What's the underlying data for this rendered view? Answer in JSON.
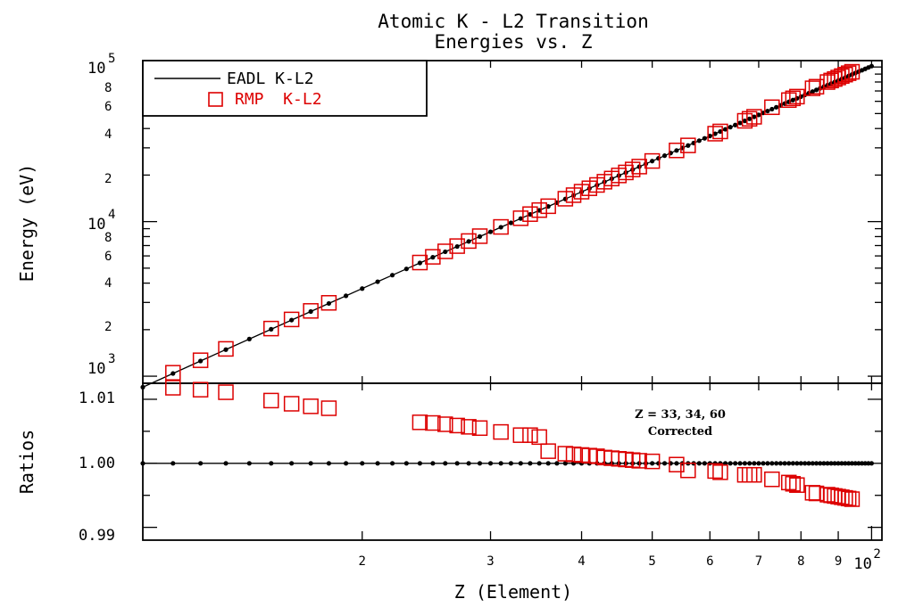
{
  "chart_data": [
    {
      "type": "line",
      "title": "Atomic K - L2 Transition",
      "subtitle": "Energies vs. Z",
      "ylabel": "Energy (eV)",
      "yscale": "log",
      "xscale": "log",
      "ylim": [
        900,
        110000
      ],
      "xlim": [
        10,
        100
      ],
      "legend_placement": "top-left",
      "series": [
        {
          "name": "EADL K-L2",
          "color": "#000000",
          "marker": "dot-line",
          "x": [
            10,
            11,
            12,
            13,
            14,
            15,
            16,
            17,
            18,
            19,
            20,
            21,
            22,
            23,
            24,
            25,
            26,
            27,
            28,
            29,
            30,
            31,
            32,
            33,
            34,
            35,
            36,
            37,
            38,
            39,
            40,
            41,
            42,
            43,
            44,
            45,
            46,
            47,
            48,
            49,
            50,
            51,
            52,
            53,
            54,
            55,
            56,
            57,
            58,
            59,
            60,
            61,
            62,
            63,
            64,
            65,
            66,
            67,
            68,
            69,
            70,
            71,
            72,
            73,
            74,
            75,
            76,
            77,
            78,
            79,
            80,
            81,
            82,
            83,
            84,
            85,
            86,
            87,
            88,
            89,
            90,
            91,
            92,
            93,
            94,
            95,
            96,
            97,
            98,
            99,
            100
          ],
          "y": [
            849,
            1041,
            1254,
            1486,
            1739,
            2013,
            2307,
            2621,
            2956,
            3312,
            3689,
            4086,
            4504,
            4942,
            5401,
            5881,
            6382,
            6903,
            7445,
            8008,
            8591,
            9196,
            9821,
            10467,
            11133,
            11821,
            12529,
            13258,
            14008,
            14779,
            15570,
            16383,
            17216,
            18070,
            18945,
            19841,
            20757,
            21695,
            22653,
            23632,
            24632,
            25653,
            26695,
            27758,
            28841,
            29945,
            31071,
            32217,
            33384,
            34572,
            35781,
            37011,
            38262,
            39534,
            40827,
            42140,
            43475,
            44831,
            46207,
            47605,
            49024,
            50463,
            51924,
            53405,
            54908,
            56431,
            57976,
            59541,
            61128,
            62735,
            64364,
            66013,
            67684,
            69375,
            71088,
            72821,
            74576,
            76351,
            78148,
            79966,
            81804,
            83664,
            85545,
            87446,
            89369,
            91313,
            93278,
            95263,
            97270,
            99298,
            101347
          ]
        },
        {
          "name": "RMP  K-L2",
          "color": "#dd0000",
          "marker": "open-square",
          "x": [
            11,
            12,
            13,
            15,
            16,
            17,
            18,
            24,
            25,
            26,
            27,
            28,
            29,
            31,
            33,
            34,
            35,
            36,
            38,
            39,
            40,
            41,
            42,
            43,
            44,
            45,
            46,
            47,
            48,
            50,
            54,
            56,
            61,
            62,
            67,
            68,
            69,
            73,
            77,
            78,
            79,
            83,
            84,
            87,
            88,
            89,
            90,
            91,
            92,
            93,
            94
          ],
          "y": [
            1053,
            1268,
            1502,
            2033,
            2329,
            2645,
            2982,
            5436,
            5918,
            6421,
            6944,
            7488,
            8052,
            9241,
            10514,
            11181,
            11869,
            12577,
            14060,
            14829,
            15617,
            16430,
            17263,
            18117,
            18993,
            19887,
            20802,
            21739,
            22695,
            24672,
            28871,
            31102,
            37055,
            38308,
            44871,
            46250,
            47650,
            54941,
            61092,
            62713,
            64358,
            72823,
            74572,
            79940,
            81781,
            83632,
            85496,
            87376,
            89270,
            91180,
            93110
          ]
        }
      ]
    },
    {
      "type": "scatter",
      "ylabel": "Ratios",
      "xlabel": "Z (Element)",
      "ylim": [
        0.988,
        1.0125
      ],
      "xlim": [
        10,
        100
      ],
      "yticks": [
        "1.01",
        "1.00",
        "0.99"
      ],
      "xticks": [
        "2",
        "3",
        "4",
        "5",
        "6",
        "7",
        "8",
        "9",
        "10²"
      ],
      "annotation": [
        "Z = 33, 34, 60",
        "Corrected"
      ],
      "series": [
        {
          "name": "EADL K-L2",
          "color": "#000000",
          "marker": "dot-line",
          "x": [
            10,
            11,
            12,
            13,
            14,
            15,
            16,
            17,
            18,
            19,
            20,
            21,
            22,
            23,
            24,
            25,
            26,
            27,
            28,
            29,
            30,
            31,
            32,
            33,
            34,
            35,
            36,
            37,
            38,
            39,
            40,
            41,
            42,
            43,
            44,
            45,
            46,
            47,
            48,
            49,
            50,
            51,
            52,
            53,
            54,
            55,
            56,
            57,
            58,
            59,
            60,
            61,
            62,
            63,
            64,
            65,
            66,
            67,
            68,
            69,
            70,
            71,
            72,
            73,
            74,
            75,
            76,
            77,
            78,
            79,
            80,
            81,
            82,
            83,
            84,
            85,
            86,
            87,
            88,
            89,
            90,
            91,
            92,
            93,
            94,
            95,
            96,
            97,
            98,
            99,
            100
          ],
          "y": [
            1,
            1,
            1,
            1,
            1,
            1,
            1,
            1,
            1,
            1,
            1,
            1,
            1,
            1,
            1,
            1,
            1,
            1,
            1,
            1,
            1,
            1,
            1,
            1,
            1,
            1,
            1,
            1,
            1,
            1,
            1,
            1,
            1,
            1,
            1,
            1,
            1,
            1,
            1,
            1,
            1,
            1,
            1,
            1,
            1,
            1,
            1,
            1,
            1,
            1,
            1,
            1,
            1,
            1,
            1,
            1,
            1,
            1,
            1,
            1,
            1,
            1,
            1,
            1,
            1,
            1,
            1,
            1,
            1,
            1,
            1,
            1,
            1,
            1,
            1,
            1,
            1,
            1,
            1,
            1,
            1,
            1,
            1,
            1,
            1,
            1,
            1,
            1,
            1,
            1,
            1
          ]
        },
        {
          "name": "RMP  K-L2",
          "color": "#dd0000",
          "marker": "open-square",
          "x": [
            11,
            12,
            13,
            15,
            16,
            17,
            18,
            24,
            25,
            26,
            27,
            28,
            29,
            31,
            33,
            34,
            35,
            36,
            38,
            39,
            40,
            41,
            42,
            43,
            44,
            45,
            46,
            47,
            48,
            50,
            54,
            56,
            61,
            62,
            67,
            68,
            69,
            73,
            77,
            78,
            79,
            83,
            84,
            87,
            88,
            89,
            90,
            91,
            92,
            93,
            94
          ],
          "y": [
            1.0118,
            1.0115,
            1.0111,
            1.0098,
            1.0093,
            1.0089,
            1.0086,
            1.0064,
            1.0063,
            1.0061,
            1.0059,
            1.0057,
            1.0055,
            1.0049,
            1.0044,
            1.0044,
            1.0041,
            1.0019,
            1.0015,
            1.0014,
            1.0013,
            1.0012,
            1.0011,
            1.0009,
            1.0008,
            1.0007,
            1.0006,
            1.0005,
            1.0004,
            1.0003,
            0.9998,
            0.9989,
            0.9988,
            0.9986,
            0.9982,
            0.9982,
            0.9982,
            0.9975,
            0.997,
            0.9968,
            0.9966,
            0.9954,
            0.9953,
            0.9951,
            0.995,
            0.9949,
            0.9948,
            0.9947,
            0.9946,
            0.9945,
            0.9944
          ]
        }
      ]
    }
  ]
}
